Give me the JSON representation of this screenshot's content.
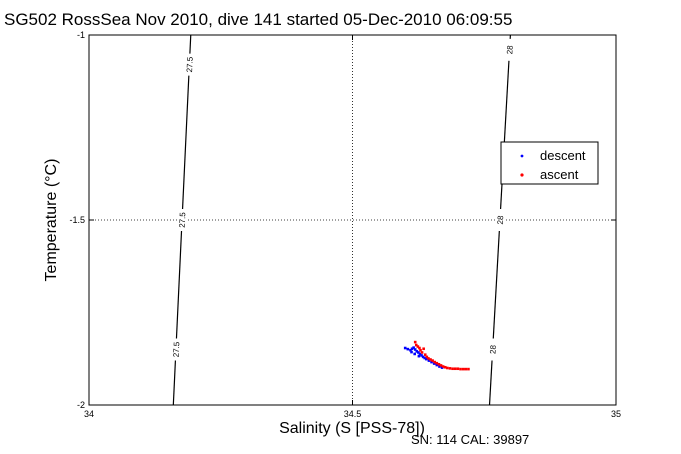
{
  "chart_data": {
    "type": "scatter",
    "title": "SG502 RossSea Nov 2010, dive 141 started 05-Dec-2010 06:09:55",
    "xlabel": "Salinity (S [PSS-78])",
    "ylabel": "Temperature (°C)",
    "xlim": [
      34,
      35
    ],
    "ylim": [
      -2,
      -1
    ],
    "xticks": [
      34,
      34.5,
      35
    ],
    "xtick_labels": [
      "34",
      "34.5",
      "35"
    ],
    "yticks": [
      -2,
      -1.5,
      -1
    ],
    "ytick_labels": [
      "-2",
      "-1.5",
      "-1"
    ],
    "grid": "dotted",
    "legend_position": "right",
    "series": [
      {
        "name": "descent",
        "color": "#0000ff",
        "points": [
          [
            34.6,
            -1.846
          ],
          [
            34.605,
            -1.849
          ],
          [
            34.61,
            -1.852
          ],
          [
            34.613,
            -1.848
          ],
          [
            34.616,
            -1.845
          ],
          [
            34.619,
            -1.85
          ],
          [
            34.622,
            -1.855
          ],
          [
            34.625,
            -1.858
          ],
          [
            34.628,
            -1.862
          ],
          [
            34.631,
            -1.866
          ],
          [
            34.634,
            -1.87
          ],
          [
            34.637,
            -1.873
          ],
          [
            34.64,
            -1.876
          ],
          [
            34.645,
            -1.88
          ],
          [
            34.65,
            -1.884
          ],
          [
            34.655,
            -1.888
          ],
          [
            34.66,
            -1.892
          ],
          [
            34.665,
            -1.896
          ],
          [
            34.67,
            -1.899
          ],
          [
            34.612,
            -1.857
          ],
          [
            34.618,
            -1.862
          ],
          [
            34.626,
            -1.868
          ]
        ]
      },
      {
        "name": "ascent",
        "color": "#ff0000",
        "points": [
          [
            34.619,
            -1.83
          ],
          [
            34.621,
            -1.838
          ],
          [
            34.624,
            -1.842
          ],
          [
            34.627,
            -1.846
          ],
          [
            34.629,
            -1.852
          ],
          [
            34.632,
            -1.858
          ],
          [
            34.635,
            -1.848
          ],
          [
            34.638,
            -1.864
          ],
          [
            34.641,
            -1.87
          ],
          [
            34.644,
            -1.874
          ],
          [
            34.648,
            -1.877
          ],
          [
            34.652,
            -1.88
          ],
          [
            34.656,
            -1.884
          ],
          [
            34.66,
            -1.887
          ],
          [
            34.664,
            -1.89
          ],
          [
            34.668,
            -1.893
          ],
          [
            34.672,
            -1.896
          ],
          [
            34.676,
            -1.898
          ],
          [
            34.68,
            -1.9
          ],
          [
            34.685,
            -1.901
          ],
          [
            34.69,
            -1.902
          ],
          [
            34.695,
            -1.902
          ],
          [
            34.7,
            -1.902
          ],
          [
            34.705,
            -1.903
          ],
          [
            34.71,
            -1.903
          ],
          [
            34.715,
            -1.903
          ],
          [
            34.72,
            -1.903
          ]
        ]
      }
    ],
    "contours": [
      {
        "label": "27.5",
        "line": [
          [
            34.16,
            -2.0
          ],
          [
            34.1931,
            -1.0
          ]
        ],
        "labels_at": [
          [
            34.165,
            -1.85
          ],
          [
            34.1765,
            -1.5
          ],
          [
            34.1905,
            -1.08
          ]
        ]
      },
      {
        "label": "28",
        "line": [
          [
            34.76,
            -2.0
          ],
          [
            34.7996,
            -1.0
          ]
        ],
        "labels_at": [
          [
            34.766,
            -1.85
          ],
          [
            34.78,
            -1.5
          ],
          [
            34.798,
            -1.04
          ]
        ]
      }
    ]
  },
  "footer": "SN: 114  CAL: 39897"
}
